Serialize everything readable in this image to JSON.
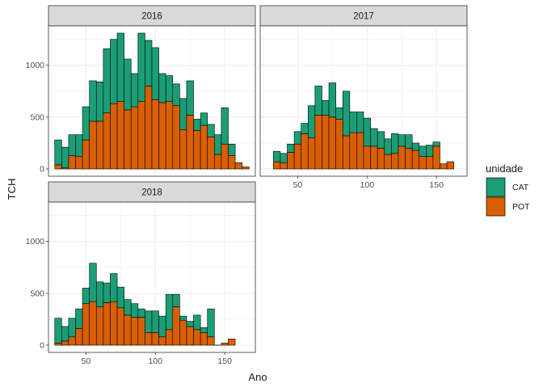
{
  "chart_data": {
    "type": "bar",
    "subtype": "stacked-histogram-faceted",
    "xlabel": "Ano",
    "ylabel": "TCH",
    "xlim": [
      23,
      172
    ],
    "ylim": [
      -70,
      1380
    ],
    "x_ticks": [
      50,
      100,
      150
    ],
    "y_ticks": [
      0,
      500,
      1000
    ],
    "bin_width": 5,
    "grid": true,
    "legend": {
      "title": "unidade",
      "position": "right",
      "entries": [
        {
          "name": "CAT",
          "color": "#1b9e77"
        },
        {
          "name": "POT",
          "color": "#d95f02"
        }
      ]
    },
    "facets": [
      {
        "label": "2016",
        "bins": [
          {
            "x": 30,
            "POT": 40,
            "total": 280
          },
          {
            "x": 35,
            "POT": 10,
            "total": 210
          },
          {
            "x": 40,
            "POT": 130,
            "total": 330
          },
          {
            "x": 45,
            "POT": 120,
            "total": 330
          },
          {
            "x": 50,
            "POT": 280,
            "total": 600
          },
          {
            "x": 55,
            "POT": 460,
            "total": 850
          },
          {
            "x": 60,
            "POT": 460,
            "total": 840
          },
          {
            "x": 65,
            "POT": 540,
            "total": 1160
          },
          {
            "x": 70,
            "POT": 630,
            "total": 1250
          },
          {
            "x": 75,
            "POT": 650,
            "total": 1310
          },
          {
            "x": 80,
            "POT": 570,
            "total": 1060
          },
          {
            "x": 85,
            "POT": 600,
            "total": 920
          },
          {
            "x": 90,
            "POT": 650,
            "total": 1310
          },
          {
            "x": 95,
            "POT": 800,
            "total": 1240
          },
          {
            "x": 100,
            "POT": 670,
            "total": 1170
          },
          {
            "x": 105,
            "POT": 640,
            "total": 920
          },
          {
            "x": 110,
            "POT": 650,
            "total": 900
          },
          {
            "x": 115,
            "POT": 610,
            "total": 820
          },
          {
            "x": 120,
            "POT": 380,
            "total": 680
          },
          {
            "x": 125,
            "POT": 520,
            "total": 850
          },
          {
            "x": 130,
            "POT": 370,
            "total": 480
          },
          {
            "x": 135,
            "POT": 420,
            "total": 540
          },
          {
            "x": 140,
            "POT": 310,
            "total": 430
          },
          {
            "x": 145,
            "POT": 140,
            "total": 330
          },
          {
            "x": 150,
            "POT": 240,
            "total": 590
          },
          {
            "x": 155,
            "POT": 130,
            "total": 240
          },
          {
            "x": 160,
            "POT": 60,
            "total": 60
          },
          {
            "x": 165,
            "POT": 20,
            "total": 20
          }
        ]
      },
      {
        "label": "2017",
        "bins": [
          {
            "x": 35,
            "POT": 70,
            "total": 170
          },
          {
            "x": 40,
            "POT": 60,
            "total": 150
          },
          {
            "x": 45,
            "POT": 160,
            "total": 240
          },
          {
            "x": 50,
            "POT": 240,
            "total": 360
          },
          {
            "x": 55,
            "POT": 340,
            "total": 440
          },
          {
            "x": 60,
            "POT": 300,
            "total": 610
          },
          {
            "x": 65,
            "POT": 520,
            "total": 800
          },
          {
            "x": 70,
            "POT": 520,
            "total": 660
          },
          {
            "x": 75,
            "POT": 500,
            "total": 830
          },
          {
            "x": 80,
            "POT": 480,
            "total": 590
          },
          {
            "x": 85,
            "POT": 320,
            "total": 750
          },
          {
            "x": 90,
            "POT": 350,
            "total": 550
          },
          {
            "x": 95,
            "POT": 350,
            "total": 550
          },
          {
            "x": 100,
            "POT": 220,
            "total": 490
          },
          {
            "x": 105,
            "POT": 220,
            "total": 390
          },
          {
            "x": 110,
            "POT": 200,
            "total": 360
          },
          {
            "x": 115,
            "POT": 140,
            "total": 290
          },
          {
            "x": 120,
            "POT": 150,
            "total": 340
          },
          {
            "x": 125,
            "POT": 220,
            "total": 330
          },
          {
            "x": 130,
            "POT": 200,
            "total": 330
          },
          {
            "x": 135,
            "POT": 180,
            "total": 250
          },
          {
            "x": 140,
            "POT": 120,
            "total": 220
          },
          {
            "x": 145,
            "POT": 120,
            "total": 230
          },
          {
            "x": 150,
            "POT": 220,
            "total": 260
          },
          {
            "x": 155,
            "POT": 50,
            "total": 50
          },
          {
            "x": 160,
            "POT": 70,
            "total": 70
          }
        ]
      },
      {
        "label": "2018",
        "bins": [
          {
            "x": 30,
            "POT": 20,
            "total": 260
          },
          {
            "x": 35,
            "POT": 40,
            "total": 180
          },
          {
            "x": 40,
            "POT": 80,
            "total": 260
          },
          {
            "x": 45,
            "POT": 160,
            "total": 350
          },
          {
            "x": 50,
            "POT": 400,
            "total": 550
          },
          {
            "x": 55,
            "POT": 420,
            "total": 790
          },
          {
            "x": 60,
            "POT": 370,
            "total": 610
          },
          {
            "x": 65,
            "POT": 410,
            "total": 600
          },
          {
            "x": 70,
            "POT": 420,
            "total": 690
          },
          {
            "x": 75,
            "POT": 360,
            "total": 560
          },
          {
            "x": 80,
            "POT": 290,
            "total": 440
          },
          {
            "x": 85,
            "POT": 270,
            "total": 400
          },
          {
            "x": 90,
            "POT": 270,
            "total": 350
          },
          {
            "x": 95,
            "POT": 120,
            "total": 330
          },
          {
            "x": 100,
            "POT": 120,
            "total": 330
          },
          {
            "x": 105,
            "POT": 80,
            "total": 280
          },
          {
            "x": 110,
            "POT": 150,
            "total": 490
          },
          {
            "x": 115,
            "POT": 370,
            "total": 490
          },
          {
            "x": 120,
            "POT": 240,
            "total": 280
          },
          {
            "x": 125,
            "POT": 180,
            "total": 230
          },
          {
            "x": 130,
            "POT": 150,
            "total": 290
          },
          {
            "x": 135,
            "POT": 120,
            "total": 170
          },
          {
            "x": 140,
            "POT": 80,
            "total": 350
          },
          {
            "x": 145,
            "POT": 0,
            "total": 0
          },
          {
            "x": 150,
            "POT": 20,
            "total": 20
          },
          {
            "x": 155,
            "POT": 60,
            "total": 60
          }
        ]
      }
    ]
  }
}
